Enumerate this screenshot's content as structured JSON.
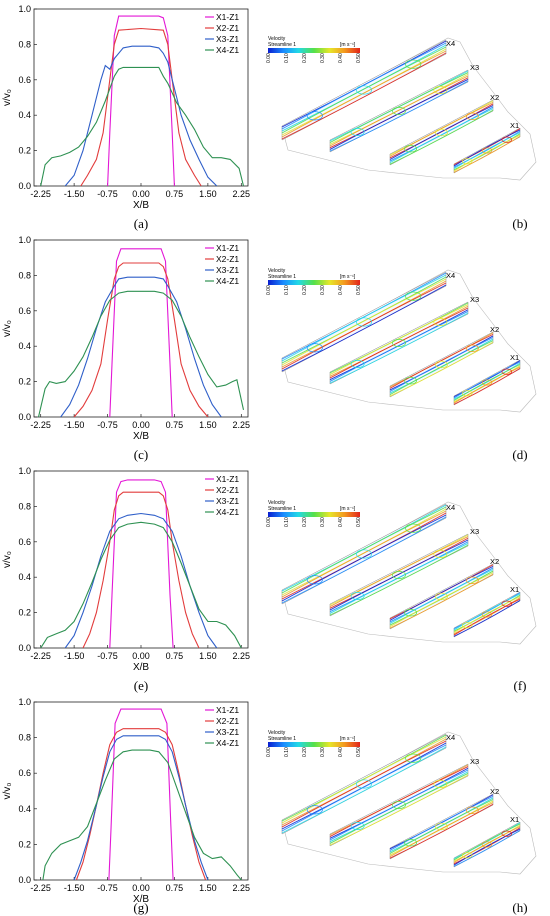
{
  "colors": {
    "X1-Z1": "#e317d6",
    "X2-Z1": "#e23c3c",
    "X3-Z1": "#2f5fc9",
    "X4-Z1": "#2e9152"
  },
  "flow_panels": [
    {
      "label": "(b)",
      "colorbar_title": "Velocity",
      "colorbar_subtitle": "Streamline 1",
      "unit": "[m s⁻¹]",
      "ticks": [
        "0.00",
        "0.10",
        "0.20",
        "0.30",
        "0.40",
        "0.50"
      ],
      "sections": [
        "X4",
        "X3",
        "X2",
        "X1"
      ]
    },
    {
      "label": "(d)",
      "colorbar_title": "Velocity",
      "colorbar_subtitle": "Streamline 1",
      "unit": "[m s⁻¹]",
      "ticks": [
        "0.00",
        "0.10",
        "0.20",
        "0.30",
        "0.40",
        "0.50"
      ],
      "sections": [
        "X4",
        "X3",
        "X2",
        "X1"
      ]
    },
    {
      "label": "(f)",
      "colorbar_title": "Velocity",
      "colorbar_subtitle": "Streamline 1",
      "unit": "[m s⁻¹]",
      "ticks": [
        "0.00",
        "0.10",
        "0.20",
        "0.30",
        "0.40",
        "0.50"
      ],
      "sections": [
        "X4",
        "X3",
        "X2",
        "X1"
      ]
    },
    {
      "label": "(h)",
      "colorbar_title": "Velocity",
      "colorbar_subtitle": "Streamline 1",
      "unit": "[m s⁻¹]",
      "ticks": [
        "0.00",
        "0.10",
        "0.20",
        "0.30",
        "0.40",
        "0.50"
      ],
      "sections": [
        "X4",
        "X3",
        "X2",
        "X1"
      ]
    }
  ],
  "chart_data": [
    {
      "type": "line",
      "label": "(a)",
      "xlabel": "X/B",
      "ylabel": "v/v₀",
      "xlim": [
        -2.4,
        2.4
      ],
      "ylim": [
        0,
        1.0
      ],
      "xticks": [
        "-2.25",
        "-1.50",
        "-0.75",
        "0.00",
        "0.75",
        "1.50",
        "2.25"
      ],
      "yticks": [
        "0.0",
        "0.2",
        "0.4",
        "0.6",
        "0.8",
        "1.0"
      ],
      "legend_position": "top-right",
      "series": [
        {
          "name": "X1-Z1",
          "x": [
            -0.75,
            -0.7,
            -0.6,
            -0.5,
            -0.4,
            -0.3,
            0,
            0.3,
            0.4,
            0.5,
            0.6,
            0.7,
            0.75
          ],
          "y": [
            0,
            0.3,
            0.85,
            0.96,
            0.96,
            0.96,
            0.96,
            0.96,
            0.96,
            0.95,
            0.85,
            0.3,
            0
          ]
        },
        {
          "name": "X2-Z1",
          "x": [
            -1.35,
            -1.2,
            -1.0,
            -0.85,
            -0.7,
            -0.6,
            -0.5,
            0,
            0.5,
            0.6,
            0.7,
            0.85,
            1.0,
            1.2,
            1.35
          ],
          "y": [
            0,
            0.06,
            0.15,
            0.3,
            0.6,
            0.8,
            0.88,
            0.89,
            0.88,
            0.8,
            0.6,
            0.3,
            0.15,
            0.06,
            0
          ]
        },
        {
          "name": "X3-Z1",
          "x": [
            -1.7,
            -1.5,
            -1.3,
            -1.1,
            -0.9,
            -0.8,
            -0.7,
            -0.6,
            -0.5,
            -0.4,
            -0.2,
            0,
            0.2,
            0.4,
            0.5,
            0.6,
            0.7,
            0.8,
            0.9,
            1.1,
            1.3,
            1.5,
            1.7
          ],
          "y": [
            0,
            0.06,
            0.2,
            0.4,
            0.6,
            0.68,
            0.66,
            0.72,
            0.75,
            0.78,
            0.79,
            0.79,
            0.79,
            0.78,
            0.75,
            0.7,
            0.6,
            0.5,
            0.4,
            0.26,
            0.15,
            0.05,
            0
          ]
        },
        {
          "name": "X4-Z1",
          "x": [
            -2.25,
            -2.15,
            -2.0,
            -1.8,
            -1.6,
            -1.4,
            -1.2,
            -1.0,
            -0.8,
            -0.6,
            -0.5,
            -0.4,
            -0.2,
            0,
            0.2,
            0.4,
            0.5,
            0.6,
            0.8,
            1.0,
            1.2,
            1.4,
            1.6,
            1.8,
            2.0,
            2.2,
            2.3
          ],
          "y": [
            0,
            0.12,
            0.16,
            0.17,
            0.19,
            0.22,
            0.28,
            0.36,
            0.48,
            0.62,
            0.66,
            0.67,
            0.67,
            0.67,
            0.67,
            0.67,
            0.62,
            0.58,
            0.47,
            0.4,
            0.32,
            0.22,
            0.16,
            0.16,
            0.15,
            0.1,
            0
          ]
        }
      ]
    },
    {
      "type": "line",
      "label": "(c)",
      "xlabel": "X/B",
      "ylabel": "v/v₀",
      "xlim": [
        -2.4,
        2.4
      ],
      "ylim": [
        0,
        1.0
      ],
      "xticks": [
        "-2.25",
        "-1.50",
        "-0.75",
        "0.00",
        "0.75",
        "1.50",
        "2.25"
      ],
      "yticks": [
        "0.0",
        "0.2",
        "0.4",
        "0.6",
        "0.8",
        "1.0"
      ],
      "legend_position": "top-right",
      "series": [
        {
          "name": "X1-Z1",
          "x": [
            -0.7,
            -0.65,
            -0.55,
            -0.45,
            -0.3,
            0,
            0.3,
            0.45,
            0.55,
            0.65,
            0.7
          ],
          "y": [
            0,
            0.3,
            0.88,
            0.95,
            0.95,
            0.95,
            0.95,
            0.95,
            0.88,
            0.3,
            0
          ]
        },
        {
          "name": "X2-Z1",
          "x": [
            -1.5,
            -1.3,
            -1.1,
            -0.9,
            -0.75,
            -0.6,
            -0.5,
            -0.4,
            0,
            0.4,
            0.5,
            0.6,
            0.75,
            0.9,
            1.1,
            1.3,
            1.5
          ],
          "y": [
            0,
            0.06,
            0.15,
            0.3,
            0.55,
            0.78,
            0.85,
            0.87,
            0.87,
            0.87,
            0.85,
            0.78,
            0.55,
            0.3,
            0.15,
            0.06,
            0
          ]
        },
        {
          "name": "X3-Z1",
          "x": [
            -1.8,
            -1.6,
            -1.4,
            -1.2,
            -1.0,
            -0.8,
            -0.6,
            -0.5,
            -0.3,
            0,
            0.3,
            0.5,
            0.6,
            0.8,
            1.0,
            1.2,
            1.4,
            1.6,
            1.8
          ],
          "y": [
            0,
            0.07,
            0.18,
            0.33,
            0.5,
            0.65,
            0.74,
            0.78,
            0.79,
            0.79,
            0.79,
            0.78,
            0.74,
            0.65,
            0.5,
            0.33,
            0.18,
            0.07,
            0
          ]
        },
        {
          "name": "X4-Z1",
          "x": [
            -2.3,
            -2.15,
            -2.05,
            -1.9,
            -1.7,
            -1.5,
            -1.3,
            -1.1,
            -0.9,
            -0.7,
            -0.5,
            -0.3,
            0,
            0.3,
            0.5,
            0.7,
            0.9,
            1.1,
            1.3,
            1.5,
            1.7,
            1.9,
            2.05,
            2.15,
            2.3
          ],
          "y": [
            0,
            0.16,
            0.2,
            0.19,
            0.2,
            0.26,
            0.34,
            0.45,
            0.57,
            0.66,
            0.7,
            0.71,
            0.71,
            0.71,
            0.7,
            0.66,
            0.57,
            0.45,
            0.34,
            0.24,
            0.17,
            0.18,
            0.2,
            0.21,
            0.04
          ]
        }
      ]
    },
    {
      "type": "line",
      "label": "(e)",
      "xlabel": "X/B",
      "ylabel": "v/v₀",
      "xlim": [
        -2.4,
        2.4
      ],
      "ylim": [
        0,
        1.0
      ],
      "xticks": [
        "-2.25",
        "-1.50",
        "-0.75",
        "0.00",
        "0.75",
        "1.50",
        "2.25"
      ],
      "yticks": [
        "0.0",
        "0.2",
        "0.4",
        "0.6",
        "0.8",
        "1.0"
      ],
      "legend_position": "top-right",
      "series": [
        {
          "name": "X1-Z1",
          "x": [
            -0.7,
            -0.65,
            -0.55,
            -0.45,
            -0.3,
            0,
            0.3,
            0.45,
            0.55,
            0.65,
            0.72
          ],
          "y": [
            0,
            0.3,
            0.88,
            0.94,
            0.95,
            0.95,
            0.95,
            0.94,
            0.88,
            0.3,
            0
          ]
        },
        {
          "name": "X2-Z1",
          "x": [
            -1.3,
            -1.15,
            -1.0,
            -0.85,
            -0.7,
            -0.6,
            -0.5,
            -0.4,
            0,
            0.4,
            0.5,
            0.6,
            0.7,
            0.85,
            1.0,
            1.15,
            1.3
          ],
          "y": [
            0,
            0.08,
            0.2,
            0.38,
            0.6,
            0.78,
            0.86,
            0.88,
            0.88,
            0.88,
            0.86,
            0.78,
            0.6,
            0.38,
            0.2,
            0.08,
            0
          ]
        },
        {
          "name": "X3-Z1",
          "x": [
            -1.7,
            -1.5,
            -1.3,
            -1.1,
            -0.9,
            -0.7,
            -0.5,
            -0.3,
            0,
            0.3,
            0.5,
            0.7,
            0.9,
            1.1,
            1.3,
            1.5,
            1.7
          ],
          "y": [
            0,
            0.07,
            0.2,
            0.35,
            0.52,
            0.66,
            0.73,
            0.75,
            0.76,
            0.75,
            0.73,
            0.66,
            0.52,
            0.35,
            0.2,
            0.07,
            0
          ]
        },
        {
          "name": "X4-Z1",
          "x": [
            -2.25,
            -2.1,
            -1.9,
            -1.7,
            -1.5,
            -1.3,
            -1.1,
            -0.9,
            -0.7,
            -0.5,
            -0.3,
            0,
            0.3,
            0.5,
            0.7,
            0.9,
            1.1,
            1.3,
            1.5,
            1.7,
            1.9,
            2.1,
            2.25
          ],
          "y": [
            0,
            0.06,
            0.08,
            0.1,
            0.15,
            0.25,
            0.37,
            0.5,
            0.61,
            0.68,
            0.7,
            0.71,
            0.7,
            0.68,
            0.6,
            0.48,
            0.35,
            0.22,
            0.15,
            0.15,
            0.13,
            0.07,
            0
          ]
        }
      ]
    },
    {
      "type": "line",
      "label": "(g)",
      "xlabel": "X/B",
      "ylabel": "v/v₀",
      "xlim": [
        -2.4,
        2.4
      ],
      "ylim": [
        0,
        1.0
      ],
      "xticks": [
        "-2.25",
        "-1.50",
        "-0.75",
        "0.00",
        "0.75",
        "1.50",
        "2.25"
      ],
      "yticks": [
        "0.0",
        "0.2",
        "0.4",
        "0.6",
        "0.8",
        "1.0"
      ],
      "legend_position": "top-right",
      "series": [
        {
          "name": "X1-Z1",
          "x": [
            -0.72,
            -0.67,
            -0.58,
            -0.45,
            -0.3,
            0,
            0.3,
            0.45,
            0.58,
            0.67,
            0.72
          ],
          "y": [
            0,
            0.3,
            0.88,
            0.96,
            0.96,
            0.96,
            0.96,
            0.96,
            0.88,
            0.3,
            0
          ]
        },
        {
          "name": "X2-Z1",
          "x": [
            -1.45,
            -1.3,
            -1.15,
            -1.0,
            -0.85,
            -0.7,
            -0.55,
            -0.4,
            0,
            0.4,
            0.55,
            0.7,
            0.85,
            1.0,
            1.15,
            1.3,
            1.45
          ],
          "y": [
            0,
            0.1,
            0.25,
            0.42,
            0.6,
            0.76,
            0.83,
            0.85,
            0.85,
            0.85,
            0.83,
            0.76,
            0.6,
            0.42,
            0.25,
            0.1,
            0
          ]
        },
        {
          "name": "X3-Z1",
          "x": [
            -1.5,
            -1.35,
            -1.2,
            -1.0,
            -0.85,
            -0.7,
            -0.55,
            -0.4,
            0,
            0.4,
            0.55,
            0.7,
            0.85,
            1.0,
            1.2,
            1.35,
            1.5
          ],
          "y": [
            0,
            0.1,
            0.22,
            0.42,
            0.58,
            0.72,
            0.79,
            0.81,
            0.81,
            0.81,
            0.79,
            0.72,
            0.58,
            0.42,
            0.22,
            0.1,
            0
          ]
        },
        {
          "name": "X4-Z1",
          "x": [
            -2.2,
            -2.15,
            -2.0,
            -1.8,
            -1.6,
            -1.4,
            -1.2,
            -1.0,
            -0.8,
            -0.6,
            -0.4,
            -0.2,
            0,
            0.2,
            0.4,
            0.6,
            0.8,
            1.0,
            1.2,
            1.4,
            1.6,
            1.8,
            2.0,
            2.15,
            2.25
          ],
          "y": [
            0,
            0.08,
            0.15,
            0.2,
            0.22,
            0.24,
            0.3,
            0.43,
            0.56,
            0.68,
            0.72,
            0.73,
            0.73,
            0.73,
            0.72,
            0.66,
            0.52,
            0.38,
            0.24,
            0.15,
            0.12,
            0.13,
            0.08,
            0.03,
            0
          ]
        }
      ]
    }
  ]
}
